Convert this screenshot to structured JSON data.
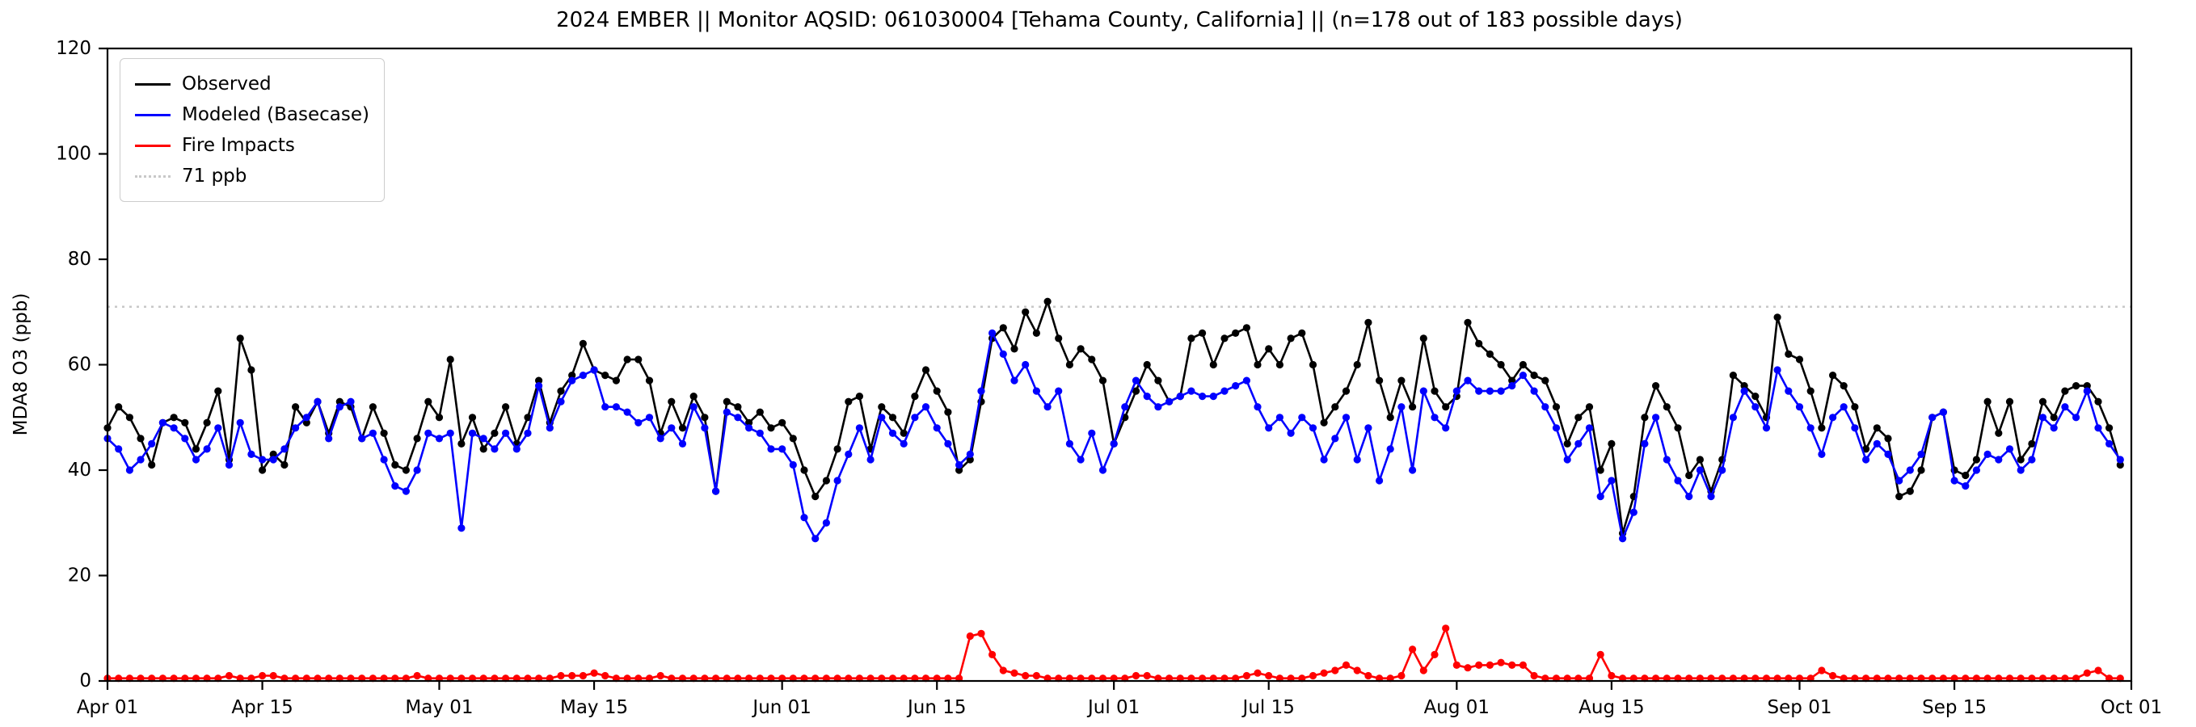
{
  "chart_data": {
    "type": "line",
    "title": "2024 EMBER || Monitor AQSID: 061030004 [Tehama County, California] || (n=178 out of 183 possible days)",
    "ylabel": "MDA8 O3 (ppb)",
    "ylim": [
      0,
      120
    ],
    "grid": false,
    "legend_position": "upper left",
    "y_axis": {
      "ticks": [
        0,
        20,
        40,
        60,
        80,
        100,
        120
      ]
    },
    "x_axis": {
      "total_days": 183,
      "start": "Apr 01",
      "end": "Oct 01",
      "ticks": [
        {
          "label": "Apr 01",
          "day": 0
        },
        {
          "label": "Apr 15",
          "day": 14
        },
        {
          "label": "May 01",
          "day": 30
        },
        {
          "label": "May 15",
          "day": 44
        },
        {
          "label": "Jun 01",
          "day": 61
        },
        {
          "label": "Jun 15",
          "day": 75
        },
        {
          "label": "Jul 01",
          "day": 91
        },
        {
          "label": "Jul 15",
          "day": 105
        },
        {
          "label": "Aug 01",
          "day": 122
        },
        {
          "label": "Aug 15",
          "day": 136
        },
        {
          "label": "Sep 01",
          "day": 153
        },
        {
          "label": "Sep 15",
          "day": 167
        },
        {
          "label": "Oct 01",
          "day": 183
        }
      ]
    },
    "threshold": {
      "label": "71 ppb",
      "value": 71,
      "color": "#c8c8c8"
    },
    "legend": [
      {
        "label": "Observed",
        "color": "#000000",
        "dotted": false
      },
      {
        "label": "Modeled (Basecase)",
        "color": "#0000ff",
        "dotted": false
      },
      {
        "label": "Fire Impacts",
        "color": "#ff0000",
        "dotted": false
      },
      {
        "label": "71 ppb",
        "color": "#c8c8c8",
        "dotted": true
      }
    ],
    "series": [
      {
        "name": "Observed",
        "color": "#000000",
        "values": [
          48,
          52,
          50,
          46,
          41,
          49,
          50,
          49,
          44,
          49,
          55,
          42,
          65,
          59,
          40,
          43,
          41,
          52,
          49,
          53,
          47,
          53,
          52,
          46,
          52,
          47,
          41,
          40,
          46,
          53,
          50,
          61,
          45,
          50,
          44,
          47,
          52,
          45,
          50,
          57,
          49,
          55,
          58,
          64,
          59,
          58,
          57,
          61,
          61,
          57,
          47,
          53,
          48,
          54,
          50,
          36,
          53,
          52,
          49,
          51,
          48,
          49,
          46,
          40,
          35,
          38,
          44,
          53,
          54,
          44,
          52,
          50,
          47,
          54,
          59,
          55,
          51,
          40,
          42,
          53,
          65,
          67,
          63,
          70,
          66,
          72,
          65,
          60,
          63,
          61,
          57,
          45,
          50,
          55,
          60,
          57,
          53,
          54,
          65,
          66,
          60,
          65,
          66,
          67,
          60,
          63,
          60,
          65,
          66,
          60,
          49,
          52,
          55,
          60,
          68,
          57,
          50,
          57,
          52,
          65,
          55,
          52,
          54,
          68,
          64,
          62,
          60,
          57,
          60,
          58,
          57,
          52,
          45,
          50,
          52,
          40,
          45,
          28,
          35,
          50,
          56,
          52,
          48,
          39,
          42,
          36,
          42,
          58,
          56,
          54,
          50,
          69,
          62,
          61,
          55,
          48,
          58,
          56,
          52,
          44,
          48,
          46,
          35,
          36,
          40,
          50,
          51,
          40,
          39,
          42,
          53,
          47,
          53,
          42,
          45,
          53,
          50,
          55,
          56,
          56,
          53,
          48,
          41
        ]
      },
      {
        "name": "Modeled (Basecase)",
        "color": "#0000ff",
        "values": [
          46,
          44,
          40,
          42,
          45,
          49,
          48,
          46,
          42,
          44,
          48,
          41,
          49,
          43,
          42,
          42,
          44,
          48,
          50,
          53,
          46,
          52,
          53,
          46,
          47,
          42,
          37,
          36,
          40,
          47,
          46,
          47,
          29,
          47,
          46,
          44,
          47,
          44,
          47,
          56,
          48,
          53,
          57,
          58,
          59,
          52,
          52,
          51,
          49,
          50,
          46,
          48,
          45,
          52,
          48,
          36,
          51,
          50,
          48,
          47,
          44,
          44,
          41,
          31,
          27,
          30,
          38,
          43,
          48,
          42,
          50,
          47,
          45,
          50,
          52,
          48,
          45,
          41,
          43,
          55,
          66,
          62,
          57,
          60,
          55,
          52,
          55,
          45,
          42,
          47,
          40,
          45,
          52,
          57,
          54,
          52,
          53,
          54,
          55,
          54,
          54,
          55,
          56,
          57,
          52,
          48,
          50,
          47,
          50,
          48,
          42,
          46,
          50,
          42,
          48,
          38,
          44,
          52,
          40,
          55,
          50,
          48,
          55,
          57,
          55,
          55,
          55,
          56,
          58,
          55,
          52,
          48,
          42,
          45,
          48,
          35,
          38,
          27,
          32,
          45,
          50,
          42,
          38,
          35,
          40,
          35,
          40,
          50,
          55,
          52,
          48,
          59,
          55,
          52,
          48,
          43,
          50,
          52,
          48,
          42,
          45,
          43,
          38,
          40,
          43,
          50,
          51,
          38,
          37,
          40,
          43,
          42,
          44,
          40,
          42,
          50,
          48,
          52,
          50,
          55,
          48,
          45,
          42
        ]
      },
      {
        "name": "Fire Impacts",
        "color": "#ff0000",
        "values": [
          0.5,
          0.5,
          0.5,
          0.5,
          0.5,
          0.5,
          0.5,
          0.5,
          0.5,
          0.5,
          0.5,
          1,
          0.5,
          0.5,
          1,
          1,
          0.5,
          0.5,
          0.5,
          0.5,
          0.5,
          0.5,
          0.5,
          0.5,
          0.5,
          0.5,
          0.5,
          0.5,
          1,
          0.5,
          0.5,
          0.5,
          0.5,
          0.5,
          0.5,
          0.5,
          0.5,
          0.5,
          0.5,
          0.5,
          0.5,
          1,
          1,
          1,
          1.5,
          1,
          0.5,
          0.5,
          0.5,
          0.5,
          1,
          0.5,
          0.5,
          0.5,
          0.5,
          0.5,
          0.5,
          0.5,
          0.5,
          0.5,
          0.5,
          0.5,
          0.5,
          0.5,
          0.5,
          0.5,
          0.5,
          0.5,
          0.5,
          0.5,
          0.5,
          0.5,
          0.5,
          0.5,
          0.5,
          0.5,
          0.5,
          0.5,
          8.5,
          9,
          5,
          2,
          1.5,
          1,
          1,
          0.5,
          0.5,
          0.5,
          0.5,
          0.5,
          0.5,
          0.5,
          0.5,
          1,
          1,
          0.5,
          0.5,
          0.5,
          0.5,
          0.5,
          0.5,
          0.5,
          0.5,
          1,
          1.5,
          1,
          0.5,
          0.5,
          0.5,
          1,
          1.5,
          2,
          3,
          2,
          1,
          0.5,
          0.5,
          1,
          6,
          2,
          5,
          10,
          3,
          2.5,
          3,
          3,
          3.5,
          3,
          3,
          1,
          0.5,
          0.5,
          0.5,
          0.5,
          0.5,
          5,
          1,
          0.5,
          0.5,
          0.5,
          0.5,
          0.5,
          0.5,
          0.5,
          0.5,
          0.5,
          0.5,
          0.5,
          0.5,
          0.5,
          0.5,
          0.5,
          0.5,
          0.5,
          0.5,
          2,
          1,
          0.5,
          0.5,
          0.5,
          0.5,
          0.5,
          0.5,
          0.5,
          0.5,
          0.5,
          0.5,
          0.5,
          0.5,
          0.5,
          0.5,
          0.5,
          0.5,
          0.5,
          0.5,
          0.5,
          0.5,
          0.5,
          0.5,
          1.5,
          2,
          0.5,
          0.5
        ]
      }
    ]
  }
}
